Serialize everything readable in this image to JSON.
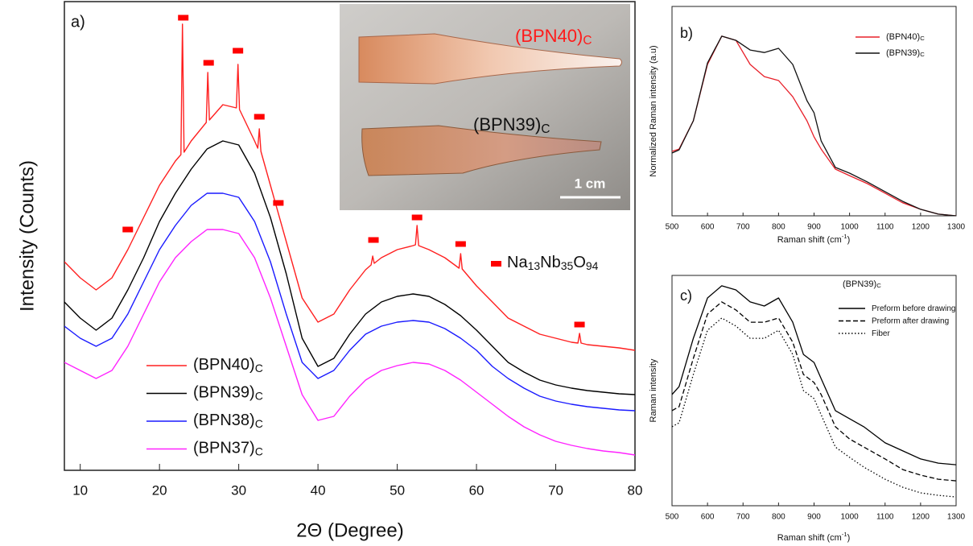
{
  "chart_data": [
    {
      "type": "line",
      "panel_label": "a)",
      "xlabel": "2Θ (Degree)",
      "ylabel": "Intensity (Counts)",
      "xlim": [
        8,
        80
      ],
      "xticks": [
        10,
        20,
        30,
        40,
        50,
        60,
        70,
        80
      ],
      "ylim": [
        0,
        582
      ],
      "series": [
        {
          "name": "(BPN40)",
          "name_sub": "C",
          "color": "#ff2020",
          "x": [
            8,
            10,
            12,
            14,
            16,
            18,
            20,
            22,
            22.7,
            22.9,
            23.1,
            24,
            25.9,
            26.1,
            26.3,
            28,
            29.7,
            29.9,
            30.1,
            32,
            32.4,
            32.6,
            32.8,
            34,
            36,
            38,
            40,
            42,
            44,
            46,
            46.7,
            46.9,
            47.1,
            48,
            50,
            52,
            52.3,
            52.5,
            52.7,
            54,
            56,
            57.8,
            58,
            58.2,
            60,
            62,
            64,
            66,
            68,
            70,
            72,
            72.8,
            73,
            73.2,
            74,
            76,
            78,
            80
          ],
          "values": [
            259,
            239,
            224,
            239,
            274,
            314,
            354,
            384,
            392,
            554,
            395,
            409,
            432,
            494,
            435,
            454,
            450,
            504,
            448,
            409,
            400,
            424,
            396,
            354,
            284,
            214,
            184,
            194,
            224,
            249,
            255,
            266,
            257,
            264,
            274,
            279,
            280,
            304,
            279,
            274,
            264,
            251,
            269,
            250,
            229,
            209,
            189,
            179,
            169,
            164,
            159,
            158,
            170,
            158,
            156,
            154,
            152,
            149
          ]
        },
        {
          "name": "(BPN39)",
          "name_sub": "C",
          "color": "#000000",
          "x": [
            8,
            10,
            12,
            14,
            16,
            18,
            20,
            22,
            24,
            26,
            28,
            30,
            32,
            34,
            36,
            38,
            40,
            42,
            44,
            46,
            48,
            50,
            52,
            54,
            56,
            58,
            60,
            62,
            64,
            66,
            68,
            70,
            72,
            74,
            76,
            78,
            80
          ],
          "values": [
            209,
            189,
            174,
            189,
            224,
            264,
            309,
            344,
            374,
            399,
            409,
            404,
            369,
            314,
            244,
            164,
            129,
            139,
            169,
            194,
            209,
            216,
            219,
            216,
            206,
            192,
            174,
            154,
            134,
            122,
            112,
            106,
            102,
            99,
            97,
            95,
            94
          ]
        },
        {
          "name": "(BPN38)",
          "name_sub": "C",
          "color": "#1a1aff",
          "x": [
            8,
            10,
            12,
            14,
            16,
            18,
            20,
            22,
            24,
            26,
            28,
            30,
            32,
            34,
            36,
            38,
            40,
            42,
            44,
            46,
            48,
            50,
            52,
            54,
            56,
            58,
            60,
            62,
            64,
            66,
            68,
            70,
            72,
            74,
            76,
            78,
            80
          ],
          "values": [
            179,
            164,
            154,
            164,
            194,
            234,
            274,
            304,
            329,
            344,
            344,
            339,
            309,
            259,
            194,
            134,
            114,
            124,
            149,
            169,
            179,
            184,
            186,
            184,
            176,
            164,
            149,
            129,
            114,
            102,
            92,
            86,
            82,
            79,
            77,
            75,
            74
          ]
        },
        {
          "name": "(BPN37)",
          "name_sub": "C",
          "color": "#ff22ff",
          "x": [
            8,
            10,
            12,
            14,
            16,
            18,
            20,
            22,
            24,
            26,
            28,
            30,
            32,
            34,
            36,
            38,
            40,
            42,
            44,
            46,
            48,
            50,
            52,
            54,
            56,
            58,
            60,
            62,
            64,
            66,
            68,
            70,
            72,
            74,
            76,
            78,
            80
          ],
          "values": [
            134,
            124,
            114,
            124,
            154,
            194,
            234,
            264,
            284,
            299,
            299,
            294,
            264,
            214,
            154,
            94,
            62,
            67,
            92,
            112,
            124,
            130,
            134,
            132,
            124,
            112,
            97,
            82,
            67,
            54,
            44,
            36,
            31,
            27,
            24,
            22,
            19
          ]
        }
      ],
      "markers": {
        "color": "#ff0000",
        "x": [
          16,
          23,
          26.2,
          29.9,
          32.6,
          35,
          47,
          52.5,
          58,
          73
        ],
        "y": [
          299,
          562,
          506,
          521,
          439,
          332,
          286,
          314,
          281,
          181
        ],
        "label": [
          "Na",
          "13",
          "Nb",
          "35",
          "O",
          "94"
        ]
      },
      "inset": {
        "labels": [
          {
            "text": "(BPN40)",
            "sub": "C",
            "color": "#ff1a1a"
          },
          {
            "text": "(BPN39)",
            "sub": "C",
            "color": "#111111"
          }
        ],
        "scale_label": "1 cm"
      }
    },
    {
      "type": "line",
      "panel_label": "b)",
      "xlabel": [
        "Raman shift (cm",
        "-1",
        ")"
      ],
      "ylabel": "Normalized Raman intensity (a.u)",
      "xlim": [
        500,
        1300
      ],
      "xticks": [
        500,
        600,
        700,
        800,
        900,
        1000,
        1100,
        1200,
        1300
      ],
      "ylim": [
        0,
        100
      ],
      "series": [
        {
          "name": "(BPN40)",
          "name_sub": "C",
          "color": "#e8202a",
          "dash": "solid",
          "x": [
            500,
            520,
            560,
            600,
            640,
            680,
            720,
            760,
            800,
            840,
            880,
            900,
            920,
            960,
            1000,
            1050,
            1100,
            1150,
            1200,
            1250,
            1300
          ],
          "values": [
            30.8,
            31.9,
            45.4,
            72.3,
            85.8,
            83.8,
            72.3,
            66.5,
            64.6,
            56.9,
            45.4,
            37.7,
            31.9,
            22.3,
            19.2,
            15.4,
            10.8,
            6.2,
            3.1,
            0.8,
            0
          ]
        },
        {
          "name": "(BPN39)",
          "name_sub": "C",
          "color": "#111111",
          "dash": "solid",
          "x": [
            500,
            520,
            560,
            600,
            640,
            680,
            720,
            760,
            800,
            840,
            880,
            900,
            920,
            960,
            1000,
            1050,
            1100,
            1150,
            1200,
            1250,
            1300
          ],
          "values": [
            30,
            31.5,
            45.4,
            73,
            85.8,
            83.8,
            79.2,
            78,
            80,
            72.3,
            55,
            49.2,
            35.8,
            23.1,
            20.4,
            16.2,
            11.5,
            6.9,
            3.1,
            0.8,
            0
          ]
        }
      ]
    },
    {
      "type": "line",
      "panel_label": "c)",
      "xlabel": [
        "Raman shift (cm",
        "-1",
        ")"
      ],
      "ylabel": "Raman intensity",
      "legend_title": "(BPN39)",
      "legend_title_sub": "C",
      "xlim": [
        500,
        1300
      ],
      "xticks": [
        500,
        600,
        700,
        800,
        900,
        1000,
        1100,
        1200,
        1300
      ],
      "ylim": [
        0,
        100
      ],
      "series": [
        {
          "name": "Preform before drawing",
          "color": "#000000",
          "dash": "solid",
          "x": [
            500,
            520,
            560,
            600,
            640,
            680,
            720,
            760,
            800,
            840,
            870,
            900,
            920,
            960,
            1000,
            1040,
            1100,
            1150,
            1200,
            1250,
            1300
          ],
          "values": [
            48.3,
            51.7,
            72.7,
            90.2,
            95.5,
            93.7,
            88.5,
            86.7,
            90.2,
            79.7,
            65.7,
            62.2,
            55.2,
            41.3,
            37.8,
            34.3,
            27.3,
            23.8,
            20.3,
            18.5,
            17.8
          ]
        },
        {
          "name": "Preform after drawing",
          "color": "#000000",
          "dash": "dashed",
          "x": [
            500,
            520,
            560,
            600,
            640,
            680,
            720,
            760,
            800,
            840,
            870,
            900,
            920,
            960,
            1000,
            1040,
            1100,
            1150,
            1200,
            1250,
            1300
          ],
          "values": [
            41.3,
            43,
            64,
            83.2,
            88.5,
            85,
            79.7,
            79.7,
            81.5,
            71,
            57,
            53.5,
            48.3,
            34.3,
            29,
            25.5,
            20.3,
            15.7,
            13.3,
            11.5,
            10.8
          ]
        },
        {
          "name": "Fiber",
          "color": "#000000",
          "dash": "dotted",
          "x": [
            500,
            520,
            560,
            600,
            640,
            680,
            720,
            760,
            800,
            840,
            870,
            900,
            920,
            960,
            1000,
            1040,
            1100,
            1150,
            1200,
            1250,
            1300
          ],
          "values": [
            34.3,
            36,
            57,
            76.2,
            81.5,
            78,
            72.7,
            72.7,
            76.2,
            65.7,
            50,
            46.5,
            39.5,
            25.5,
            21,
            16.8,
            11.5,
            8,
            5.6,
            4.5,
            3.8
          ]
        }
      ]
    }
  ]
}
